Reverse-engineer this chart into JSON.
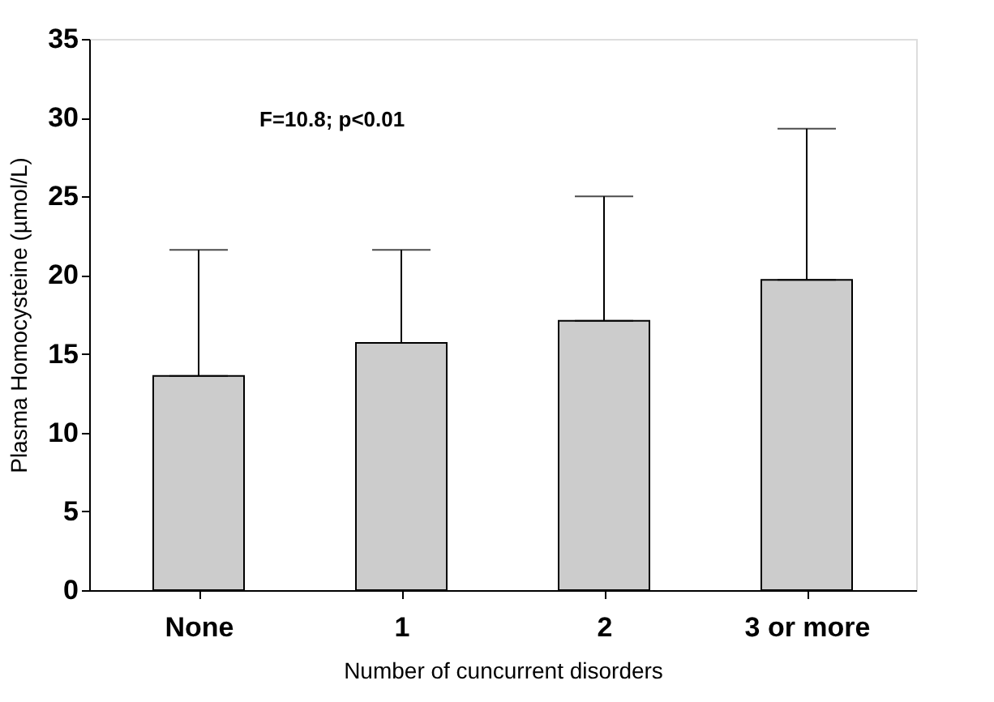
{
  "chart_data": {
    "type": "bar",
    "xlabel": "Number of cuncurrent disorders",
    "ylabel": "Plasma Homocysteine (µmol/L)",
    "categories": [
      "None",
      "1",
      "2",
      "3 or more"
    ],
    "values": [
      13.6,
      15.7,
      17.1,
      19.7
    ],
    "errors": [
      [
        13.6,
        21.6
      ],
      [
        15.7,
        21.6
      ],
      [
        17.1,
        25.0
      ],
      [
        19.7,
        29.3
      ]
    ],
    "color": "#cccccc",
    "ylim": [
      0,
      35
    ],
    "yticks": [
      0,
      5,
      10,
      15,
      20,
      25,
      30,
      35
    ],
    "grid": false,
    "annotations": [
      "F=10.8; p<0.01"
    ]
  }
}
